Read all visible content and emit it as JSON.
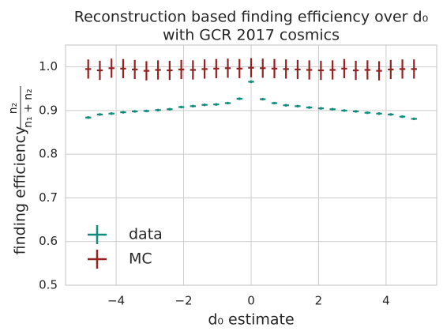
{
  "chart_data": {
    "type": "errorbar",
    "title": [
      "Reconstruction based finding efficiency over d₀",
      "with GCR 2017 cosmics"
    ],
    "xlabel": "d₀ estimate",
    "ylabel": "finding efficiency",
    "ylabel_fraction": {
      "numerator": "n₂",
      "denominator": "n₁ + n₂"
    },
    "x": [
      -4.828,
      -4.483,
      -4.138,
      -3.793,
      -3.448,
      -3.103,
      -2.759,
      -2.414,
      -2.069,
      -1.724,
      -1.379,
      -1.034,
      -0.69,
      -0.345,
      0,
      0.345,
      0.69,
      1.034,
      1.379,
      1.724,
      2.069,
      2.414,
      2.759,
      3.103,
      3.448,
      3.793,
      4.138,
      4.483,
      4.828
    ],
    "series": [
      {
        "name": "data",
        "color": "#118c7c",
        "values": [
          0.884,
          0.891,
          0.893,
          0.896,
          0.898,
          0.899,
          0.901,
          0.903,
          0.908,
          0.91,
          0.913,
          0.914,
          0.917,
          0.927,
          0.966,
          0.926,
          0.917,
          0.912,
          0.91,
          0.907,
          0.905,
          0.903,
          0.9,
          0.898,
          0.895,
          0.893,
          0.891,
          0.886,
          0.881
        ],
        "errors": [
          0.003,
          0.003,
          0.003,
          0.003,
          0.003,
          0.003,
          0.003,
          0.003,
          0.003,
          0.003,
          0.003,
          0.003,
          0.003,
          0.003,
          0.003,
          0.003,
          0.003,
          0.003,
          0.003,
          0.003,
          0.003,
          0.003,
          0.003,
          0.003,
          0.003,
          0.003,
          0.003,
          0.003,
          0.003
        ]
      },
      {
        "name": "MC",
        "color": "#942222",
        "values": [
          0.995,
          0.992,
          0.997,
          0.996,
          0.994,
          0.991,
          0.993,
          0.992,
          0.994,
          0.993,
          0.995,
          0.996,
          0.997,
          0.996,
          0.998,
          0.997,
          0.996,
          0.995,
          0.994,
          0.993,
          0.992,
          0.993,
          0.996,
          0.992,
          0.993,
          0.991,
          0.994,
          0.995,
          0.995
        ],
        "errors": [
          0.022,
          0.022,
          0.022,
          0.022,
          0.022,
          0.022,
          0.022,
          0.022,
          0.022,
          0.022,
          0.022,
          0.022,
          0.022,
          0.022,
          0.022,
          0.022,
          0.022,
          0.022,
          0.022,
          0.022,
          0.022,
          0.022,
          0.022,
          0.022,
          0.022,
          0.022,
          0.022,
          0.022,
          0.022
        ]
      }
    ],
    "xlim": [
      -5.5,
      5.5
    ],
    "ylim": [
      0.5,
      1.05
    ],
    "xticks": [
      {
        "value": -4,
        "label": "−4"
      },
      {
        "value": -2,
        "label": "−2"
      },
      0,
      2,
      4
    ],
    "yticks": [
      0.5,
      0.6,
      0.7,
      0.8,
      0.9,
      {
        "value": 1,
        "label": "1.0"
      }
    ],
    "grid": true,
    "legend": "lower left"
  }
}
